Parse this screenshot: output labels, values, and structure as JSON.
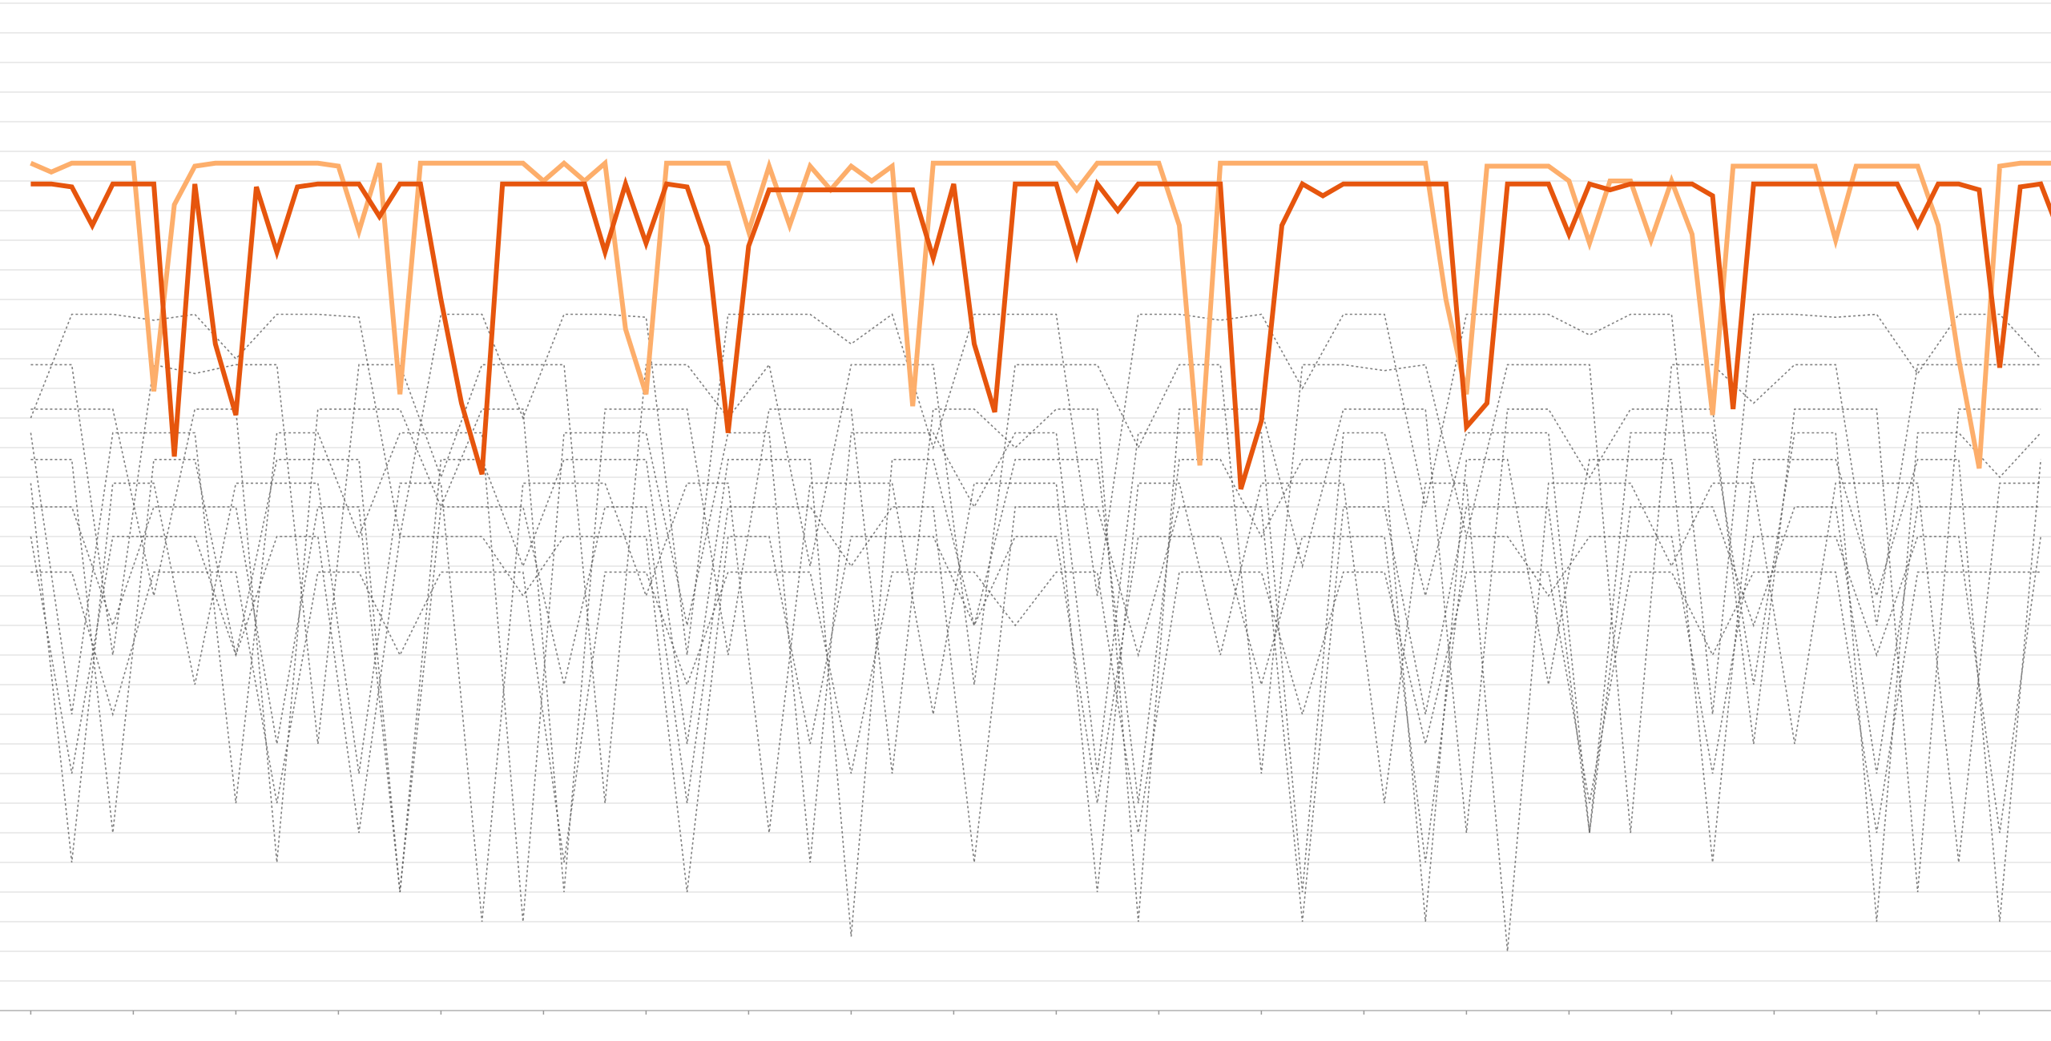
{
  "chart_data": {
    "type": "line",
    "title": "",
    "xlabel": "",
    "ylabel": "",
    "xlim": [
      -1.5,
      98.5
    ],
    "ylim": [
      0,
      34
    ],
    "grid": "horizontal",
    "legend": "none",
    "x_ticks": [
      0,
      5,
      10,
      15,
      20,
      25,
      30,
      35,
      40,
      45,
      50,
      55,
      60,
      65,
      70,
      75,
      80,
      85,
      90,
      95
    ],
    "colors": {
      "highlight_dark": "#e6550d",
      "highlight_light": "#fdae6b",
      "background_series": "#555555",
      "grid": "#ebebeb",
      "axis": "#c4c4c4"
    },
    "highlight_series": [
      {
        "color": "#fdae6b",
        "values": [
          28.6,
          28.3,
          28.6,
          28.6,
          28.6,
          28.6,
          20.9,
          27.2,
          28.5,
          28.6,
          28.6,
          28.6,
          28.6,
          28.6,
          28.6,
          28.5,
          26.3,
          28.6,
          20.8,
          28.6,
          28.6,
          28.6,
          28.6,
          28.6,
          28.6,
          28.0,
          28.6,
          28.0,
          28.6,
          23.0,
          20.8,
          28.6,
          28.6,
          28.6,
          28.6,
          26.3,
          28.5,
          26.5,
          28.5,
          27.7,
          28.5,
          28.0,
          28.5,
          20.4,
          28.6,
          28.6,
          28.6,
          28.6,
          28.6,
          28.6,
          28.6,
          27.7,
          28.6,
          28.6,
          28.6,
          28.6,
          26.5,
          18.4,
          28.6,
          28.6,
          28.6,
          28.6,
          28.6,
          28.6,
          28.6,
          28.6,
          28.6,
          28.6,
          28.6,
          24.0,
          20.8,
          28.5,
          28.5,
          28.5,
          28.5,
          28.0,
          25.9,
          28.0,
          28.0,
          26.0,
          28.0,
          26.2,
          20.1,
          28.5,
          28.5,
          28.5,
          28.5,
          28.5,
          26.0,
          28.5,
          28.5,
          28.5,
          28.5,
          26.5,
          22.0,
          18.3,
          28.5,
          28.6,
          28.6,
          28.6
        ]
      },
      {
        "color": "#e6550d",
        "values": [
          27.9,
          27.9,
          27.8,
          26.5,
          27.9,
          27.9,
          27.9,
          18.7,
          27.9,
          22.5,
          20.1,
          27.8,
          25.6,
          27.8,
          27.9,
          27.9,
          27.9,
          26.8,
          27.9,
          27.9,
          24.0,
          20.5,
          18.1,
          27.9,
          27.9,
          27.9,
          27.9,
          27.9,
          25.6,
          27.9,
          25.9,
          27.9,
          27.8,
          25.8,
          19.5,
          25.8,
          27.7,
          27.7,
          27.7,
          27.7,
          27.7,
          27.7,
          27.7,
          27.7,
          25.4,
          27.9,
          22.5,
          20.2,
          27.9,
          27.9,
          27.9,
          25.5,
          27.9,
          27.0,
          27.9,
          27.9,
          27.9,
          27.9,
          27.9,
          17.6,
          19.9,
          26.5,
          27.9,
          27.5,
          27.9,
          27.9,
          27.9,
          27.9,
          27.9,
          27.9,
          19.7,
          20.5,
          27.9,
          27.9,
          27.9,
          26.2,
          27.9,
          27.7,
          27.9,
          27.9,
          27.9,
          27.9,
          27.5,
          20.3,
          27.9,
          27.9,
          27.9,
          27.9,
          27.9,
          27.9,
          27.9,
          27.9,
          26.5,
          27.9,
          27.9,
          27.7,
          21.7,
          27.8,
          27.9,
          26.1
        ]
      }
    ],
    "background_series_x_step": 2,
    "background_series": [
      [
        20,
        23.5,
        23.5,
        23.3,
        23.5,
        22,
        23.5,
        23.5,
        23.4,
        16,
        23.5,
        23.5,
        20,
        23.5,
        23.5,
        23.4,
        12,
        23.5,
        23.5,
        23.5,
        22.5,
        23.5,
        19,
        23.5,
        23.5,
        23.5,
        14,
        23.5,
        23.5,
        23.3,
        23.5,
        21,
        23.5,
        23.5,
        17,
        23.5,
        23.5,
        23.5,
        22.8,
        23.5,
        23.5,
        10,
        23.5,
        23.5,
        23.4,
        23.5,
        21.5,
        23.5,
        23.5,
        22
      ],
      [
        21.8,
        21.8,
        12,
        21.8,
        21.5,
        21.8,
        21.8,
        9,
        21.8,
        21.8,
        18,
        21.8,
        21.8,
        21.8,
        7,
        21.8,
        21.8,
        20,
        21.8,
        15,
        21.8,
        21.8,
        21.8,
        11,
        21.8,
        21.8,
        21.8,
        19,
        21.8,
        21.8,
        8,
        21.8,
        21.8,
        21.6,
        21.8,
        16,
        21.8,
        21.8,
        21.8,
        6,
        21.8,
        21.8,
        20.5,
        21.8,
        21.8,
        13,
        21.8,
        21.8,
        21.8,
        21.8
      ],
      [
        20.3,
        20.3,
        20.3,
        14,
        20.3,
        20.3,
        5,
        20.3,
        20.3,
        20.3,
        17,
        20.3,
        20.3,
        4,
        20.3,
        20.3,
        20.3,
        12,
        20.3,
        20.3,
        20.3,
        8,
        20.3,
        20.3,
        19,
        20.3,
        20.3,
        3,
        20.3,
        20.3,
        20.3,
        15,
        20.3,
        20.3,
        20.3,
        6,
        20.3,
        20.3,
        18,
        20.3,
        20.3,
        20.3,
        9,
        20.3,
        20.3,
        20.3,
        4,
        20.3,
        20.3,
        20.3
      ],
      [
        19.5,
        10,
        19.5,
        19.5,
        19.5,
        7,
        19.5,
        19.5,
        16,
        19.5,
        19.5,
        19.5,
        3,
        19.5,
        19.5,
        19.5,
        13,
        19.5,
        19.5,
        5,
        19.5,
        19.5,
        19.5,
        17,
        19.5,
        19.5,
        8,
        19.5,
        19.5,
        19.5,
        19.5,
        4,
        19.5,
        19.5,
        14,
        19.5,
        19.5,
        19.5,
        6,
        19.5,
        19.5,
        19.5,
        11,
        19.5,
        19.5,
        3,
        19.5,
        19.5,
        18,
        19.5
      ],
      [
        18.6,
        18.6,
        6,
        18.6,
        18.6,
        12,
        18.6,
        18.6,
        18.6,
        4,
        18.6,
        18.6,
        15,
        18.6,
        18.6,
        18.6,
        9,
        18.6,
        18.6,
        18.6,
        2.5,
        18.6,
        18.6,
        13,
        18.6,
        18.6,
        18.6,
        7,
        18.6,
        18.6,
        16,
        18.6,
        18.6,
        18.6,
        3,
        18.6,
        18.6,
        11,
        18.6,
        18.6,
        18.6,
        5,
        18.6,
        18.6,
        18.6,
        14,
        18.6,
        18.6,
        3,
        18.6
      ],
      [
        17.8,
        5,
        17.8,
        17.8,
        11,
        17.8,
        17.8,
        17.8,
        8,
        17.8,
        17.8,
        3,
        17.8,
        17.8,
        17.8,
        14,
        17.8,
        17.8,
        6,
        17.8,
        17.8,
        17.8,
        10,
        17.8,
        17.8,
        17.8,
        4,
        17.8,
        17.8,
        12,
        17.8,
        17.8,
        17.8,
        7,
        17.8,
        17.8,
        2,
        17.8,
        17.8,
        17.8,
        15,
        17.8,
        17.8,
        9,
        17.8,
        17.8,
        17.8,
        5,
        17.8,
        17.8
      ],
      [
        17,
        17,
        13,
        17,
        17,
        17,
        9,
        17,
        17,
        4,
        17,
        17,
        17,
        11,
        17,
        17,
        7,
        17,
        17,
        17,
        15,
        17,
        17,
        5,
        17,
        17,
        17,
        12,
        17,
        17,
        17,
        3,
        17,
        17,
        10,
        17,
        17,
        17,
        6,
        17,
        17,
        17,
        13,
        17,
        17,
        8,
        17,
        17,
        17,
        17
      ],
      [
        16,
        8,
        16,
        16,
        16,
        12,
        16,
        16,
        6,
        16,
        16,
        16,
        14,
        16,
        16,
        16,
        4,
        16,
        16,
        9,
        16,
        16,
        16,
        13,
        16,
        16,
        7,
        16,
        16,
        16,
        11,
        16,
        16,
        16,
        5,
        16,
        16,
        14,
        16,
        16,
        16,
        8,
        16,
        16,
        16,
        12,
        16,
        16,
        6,
        16
      ],
      [
        14.8,
        14.8,
        10,
        14.8,
        14.8,
        14.8,
        7,
        14.8,
        14.8,
        12,
        14.8,
        14.8,
        14.8,
        5,
        14.8,
        14.8,
        11,
        14.8,
        14.8,
        14.8,
        8,
        14.8,
        14.8,
        14.8,
        13,
        14.8,
        14.8,
        6,
        14.8,
        14.8,
        14.8,
        10,
        14.8,
        14.8,
        9,
        14.8,
        14.8,
        14.8,
        7,
        14.8,
        14.8,
        12,
        14.8,
        14.8,
        14.8,
        6,
        14.8,
        14.8,
        14.8,
        14.8
      ]
    ]
  }
}
